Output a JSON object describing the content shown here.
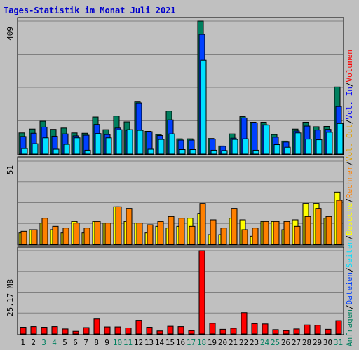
{
  "chart_data": {
    "type": "bar",
    "title": "Tages-Statistik im Monat Juli 2021",
    "categories": [
      "1",
      "2",
      "3",
      "4",
      "5",
      "6",
      "7",
      "8",
      "9",
      "10",
      "11",
      "12",
      "13",
      "14",
      "15",
      "16",
      "17",
      "18",
      "19",
      "20",
      "21",
      "22",
      "23",
      "24",
      "25",
      "26",
      "27",
      "28",
      "29",
      "30",
      "31"
    ],
    "weekend_days": [
      "3",
      "4",
      "10",
      "11",
      "17",
      "18",
      "24",
      "25",
      "31"
    ],
    "panels": [
      {
        "name": "hits",
        "scale_label": "409",
        "ylim": [
          0,
          409
        ],
        "series": [
          {
            "name": "Anfragen",
            "color": "#00805f",
            "values": [
              65,
              77,
              101,
              76,
              80,
              65,
              64,
              114,
              75,
              117,
              99,
              162,
              70,
              60,
              132,
              47,
              47,
              409,
              48,
              25,
              62,
              115,
              98,
              98,
              60,
              40,
              77,
              98,
              84,
              85,
              206
            ]
          },
          {
            "name": "Dateien",
            "color": "#0040ff",
            "values": [
              54,
              64,
              83,
              55,
              62,
              56,
              58,
              91,
              60,
              80,
              73,
              157,
              69,
              57,
              105,
              43,
              43,
              368,
              46,
              24,
              49,
              111,
              96,
              90,
              52,
              37,
              71,
              86,
              74,
              76,
              146
            ]
          },
          {
            "name": "Seiten",
            "color": "#00e0ff",
            "values": [
              17,
              32,
              50,
              15,
              30,
              50,
              12,
              63,
              50,
              75,
              75,
              73,
              15,
              45,
              62,
              14,
              14,
              288,
              12,
              11,
              45,
              47,
              12,
              89,
              29,
              21,
              65,
              46,
              44,
              67,
              94
            ]
          }
        ]
      },
      {
        "name": "sessions",
        "scale_label": "51",
        "ylim": [
          0,
          51
        ],
        "series": [
          {
            "name": "Besuche",
            "color": "#ffff00",
            "values": [
              7,
              9,
              13,
              9,
              7,
              14,
              7,
              14,
              13,
              23,
              14,
              13,
              7,
              11,
              10,
              11,
              16,
              19,
              6,
              6,
              16,
              15,
              5,
              14,
              14,
              9,
              15,
              25,
              25,
              16,
              32
            ]
          },
          {
            "name": "Rechner",
            "color": "#ff8000",
            "values": [
              8,
              9,
              16,
              11,
              10,
              13,
              10,
              14,
              13,
              23,
              22,
              13,
              12,
              14,
              17,
              16,
              11,
              25,
              15,
              10,
              22,
              9,
              10,
              14,
              14,
              14,
              11,
              17,
              22,
              17,
              27
            ]
          }
        ]
      },
      {
        "name": "volume",
        "scale_label": "25.17 MB",
        "ylim": [
          0,
          25.17
        ],
        "series": [
          {
            "name": "Volumen",
            "color": "#ff0000",
            "values": [
              2,
              2.2,
              2,
              2.2,
              1.5,
              0.8,
              1.9,
              4.5,
              2.1,
              2.1,
              1.8,
              4.1,
              2,
              0.9,
              2.3,
              2.2,
              1,
              25.17,
              3.2,
              1.4,
              1.7,
              6.4,
              3.1,
              3,
              1.3,
              1,
              1.5,
              2.7,
              2.6,
              1.4,
              4
            ]
          }
        ]
      }
    ],
    "legend": [
      {
        "text": "Anfragen",
        "color": "#00805f"
      },
      {
        "text": "Dateien",
        "color": "#0040ff"
      },
      {
        "text": "Seiten",
        "color": "#00e0ff"
      },
      {
        "text": "Besuche",
        "color": "#ffff00"
      },
      {
        "text": "Rechner",
        "color": "#ff8000"
      },
      {
        "text": "Vol. Out",
        "color": "#e0a000"
      },
      {
        "text": "Vol. In",
        "color": "#0000ff"
      },
      {
        "text": "Volumen",
        "color": "#ff0000"
      }
    ],
    "separator_color": "#000000",
    "weekday_color": "#000000",
    "weekend_color": "#00805f"
  }
}
